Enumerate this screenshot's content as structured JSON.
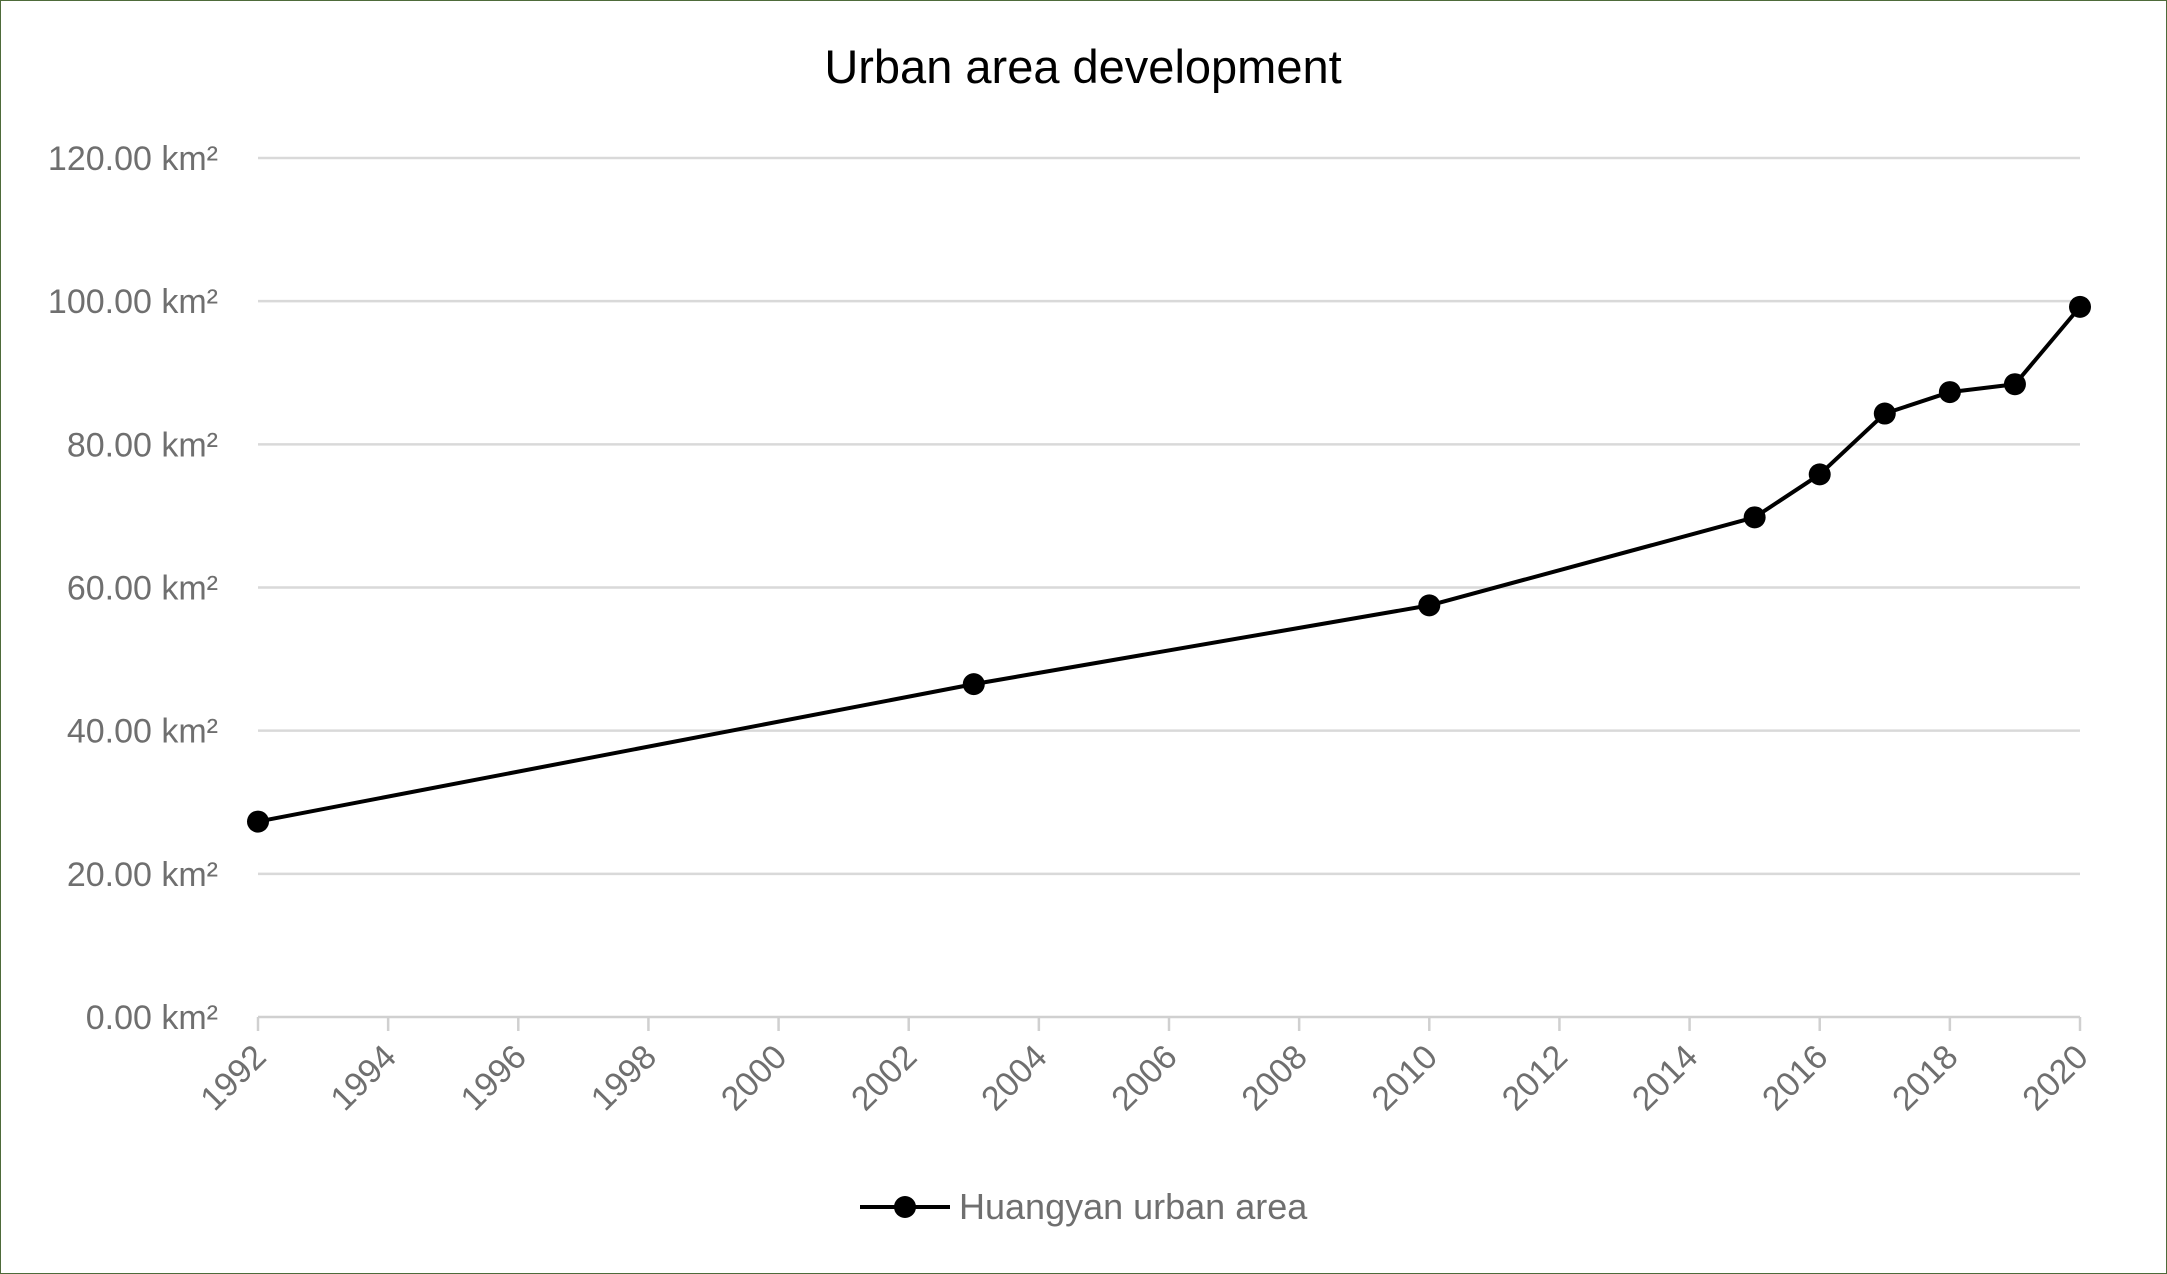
{
  "chart_data": {
    "type": "line",
    "title": "Urban area development",
    "xlabel": "",
    "ylabel": "",
    "xlim": [
      1992,
      2020
    ],
    "ylim": [
      0,
      120
    ],
    "x_ticks": [
      1992,
      1994,
      1996,
      1998,
      2000,
      2002,
      2004,
      2006,
      2008,
      2010,
      2012,
      2014,
      2016,
      2018,
      2020
    ],
    "y_ticks": [
      0,
      20,
      40,
      60,
      80,
      100,
      120
    ],
    "y_tick_labels": [
      "0.00 km²",
      "20.00 km²",
      "40.00 km²",
      "60.00 km²",
      "80.00 km²",
      "100.00 km²",
      "120.00 km²"
    ],
    "grid": true,
    "legend_position": "bottom",
    "series": [
      {
        "name": "Huangyan urban area",
        "color": "#000000",
        "marker": "circle",
        "x": [
          1992,
          2003,
          2010,
          2015,
          2016,
          2017,
          2018,
          2019,
          2020
        ],
        "y": [
          27.3,
          46.5,
          57.5,
          69.8,
          75.8,
          84.3,
          87.3,
          88.4,
          99.2
        ]
      }
    ]
  }
}
